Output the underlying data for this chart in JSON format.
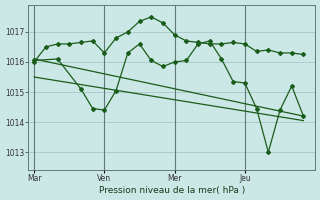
{
  "background_color": "#cce8e6",
  "grid_color": "#aaccca",
  "line_color": "#1a5c1a",
  "xlabel": "Pression niveau de la mer( hPa )",
  "ylim": [
    1012.4,
    1017.9
  ],
  "yticks": [
    1013,
    1014,
    1015,
    1016,
    1017
  ],
  "xtick_labels": [
    "Mar",
    "Ven",
    "Mer",
    "Jeu"
  ],
  "xtick_positions": [
    0,
    24,
    48,
    72
  ],
  "vline_positions": [
    0,
    24,
    48,
    72
  ],
  "xlim": [
    -2,
    96
  ],
  "series1_x": [
    0,
    4,
    8,
    12,
    16,
    20,
    24,
    28,
    32,
    36,
    40,
    44,
    48,
    52,
    56,
    60,
    64,
    68,
    72,
    76,
    80,
    84,
    88,
    92
  ],
  "series1_y": [
    1016.0,
    1016.5,
    1016.6,
    1016.6,
    1016.65,
    1016.7,
    1016.3,
    1016.8,
    1017.0,
    1017.35,
    1017.5,
    1017.3,
    1016.9,
    1016.7,
    1016.65,
    1016.6,
    1016.6,
    1016.65,
    1016.6,
    1016.35,
    1016.4,
    1016.3,
    1016.3,
    1016.25
  ],
  "series2_x": [
    0,
    8,
    16,
    20,
    24,
    28,
    32,
    36,
    40,
    44,
    48,
    52,
    56,
    60,
    64,
    68,
    72,
    76,
    80,
    84,
    88,
    92
  ],
  "series2_y": [
    1016.05,
    1016.1,
    1015.1,
    1014.45,
    1014.4,
    1015.05,
    1016.3,
    1016.6,
    1016.05,
    1015.85,
    1016.0,
    1016.05,
    1016.6,
    1016.7,
    1016.1,
    1015.35,
    1015.3,
    1014.45,
    1013.0,
    1014.4,
    1015.2,
    1014.2
  ],
  "trend1_x": [
    0,
    92
  ],
  "trend1_y": [
    1016.1,
    1014.2
  ],
  "trend2_x": [
    0,
    92
  ],
  "trend2_y": [
    1015.5,
    1014.05
  ]
}
